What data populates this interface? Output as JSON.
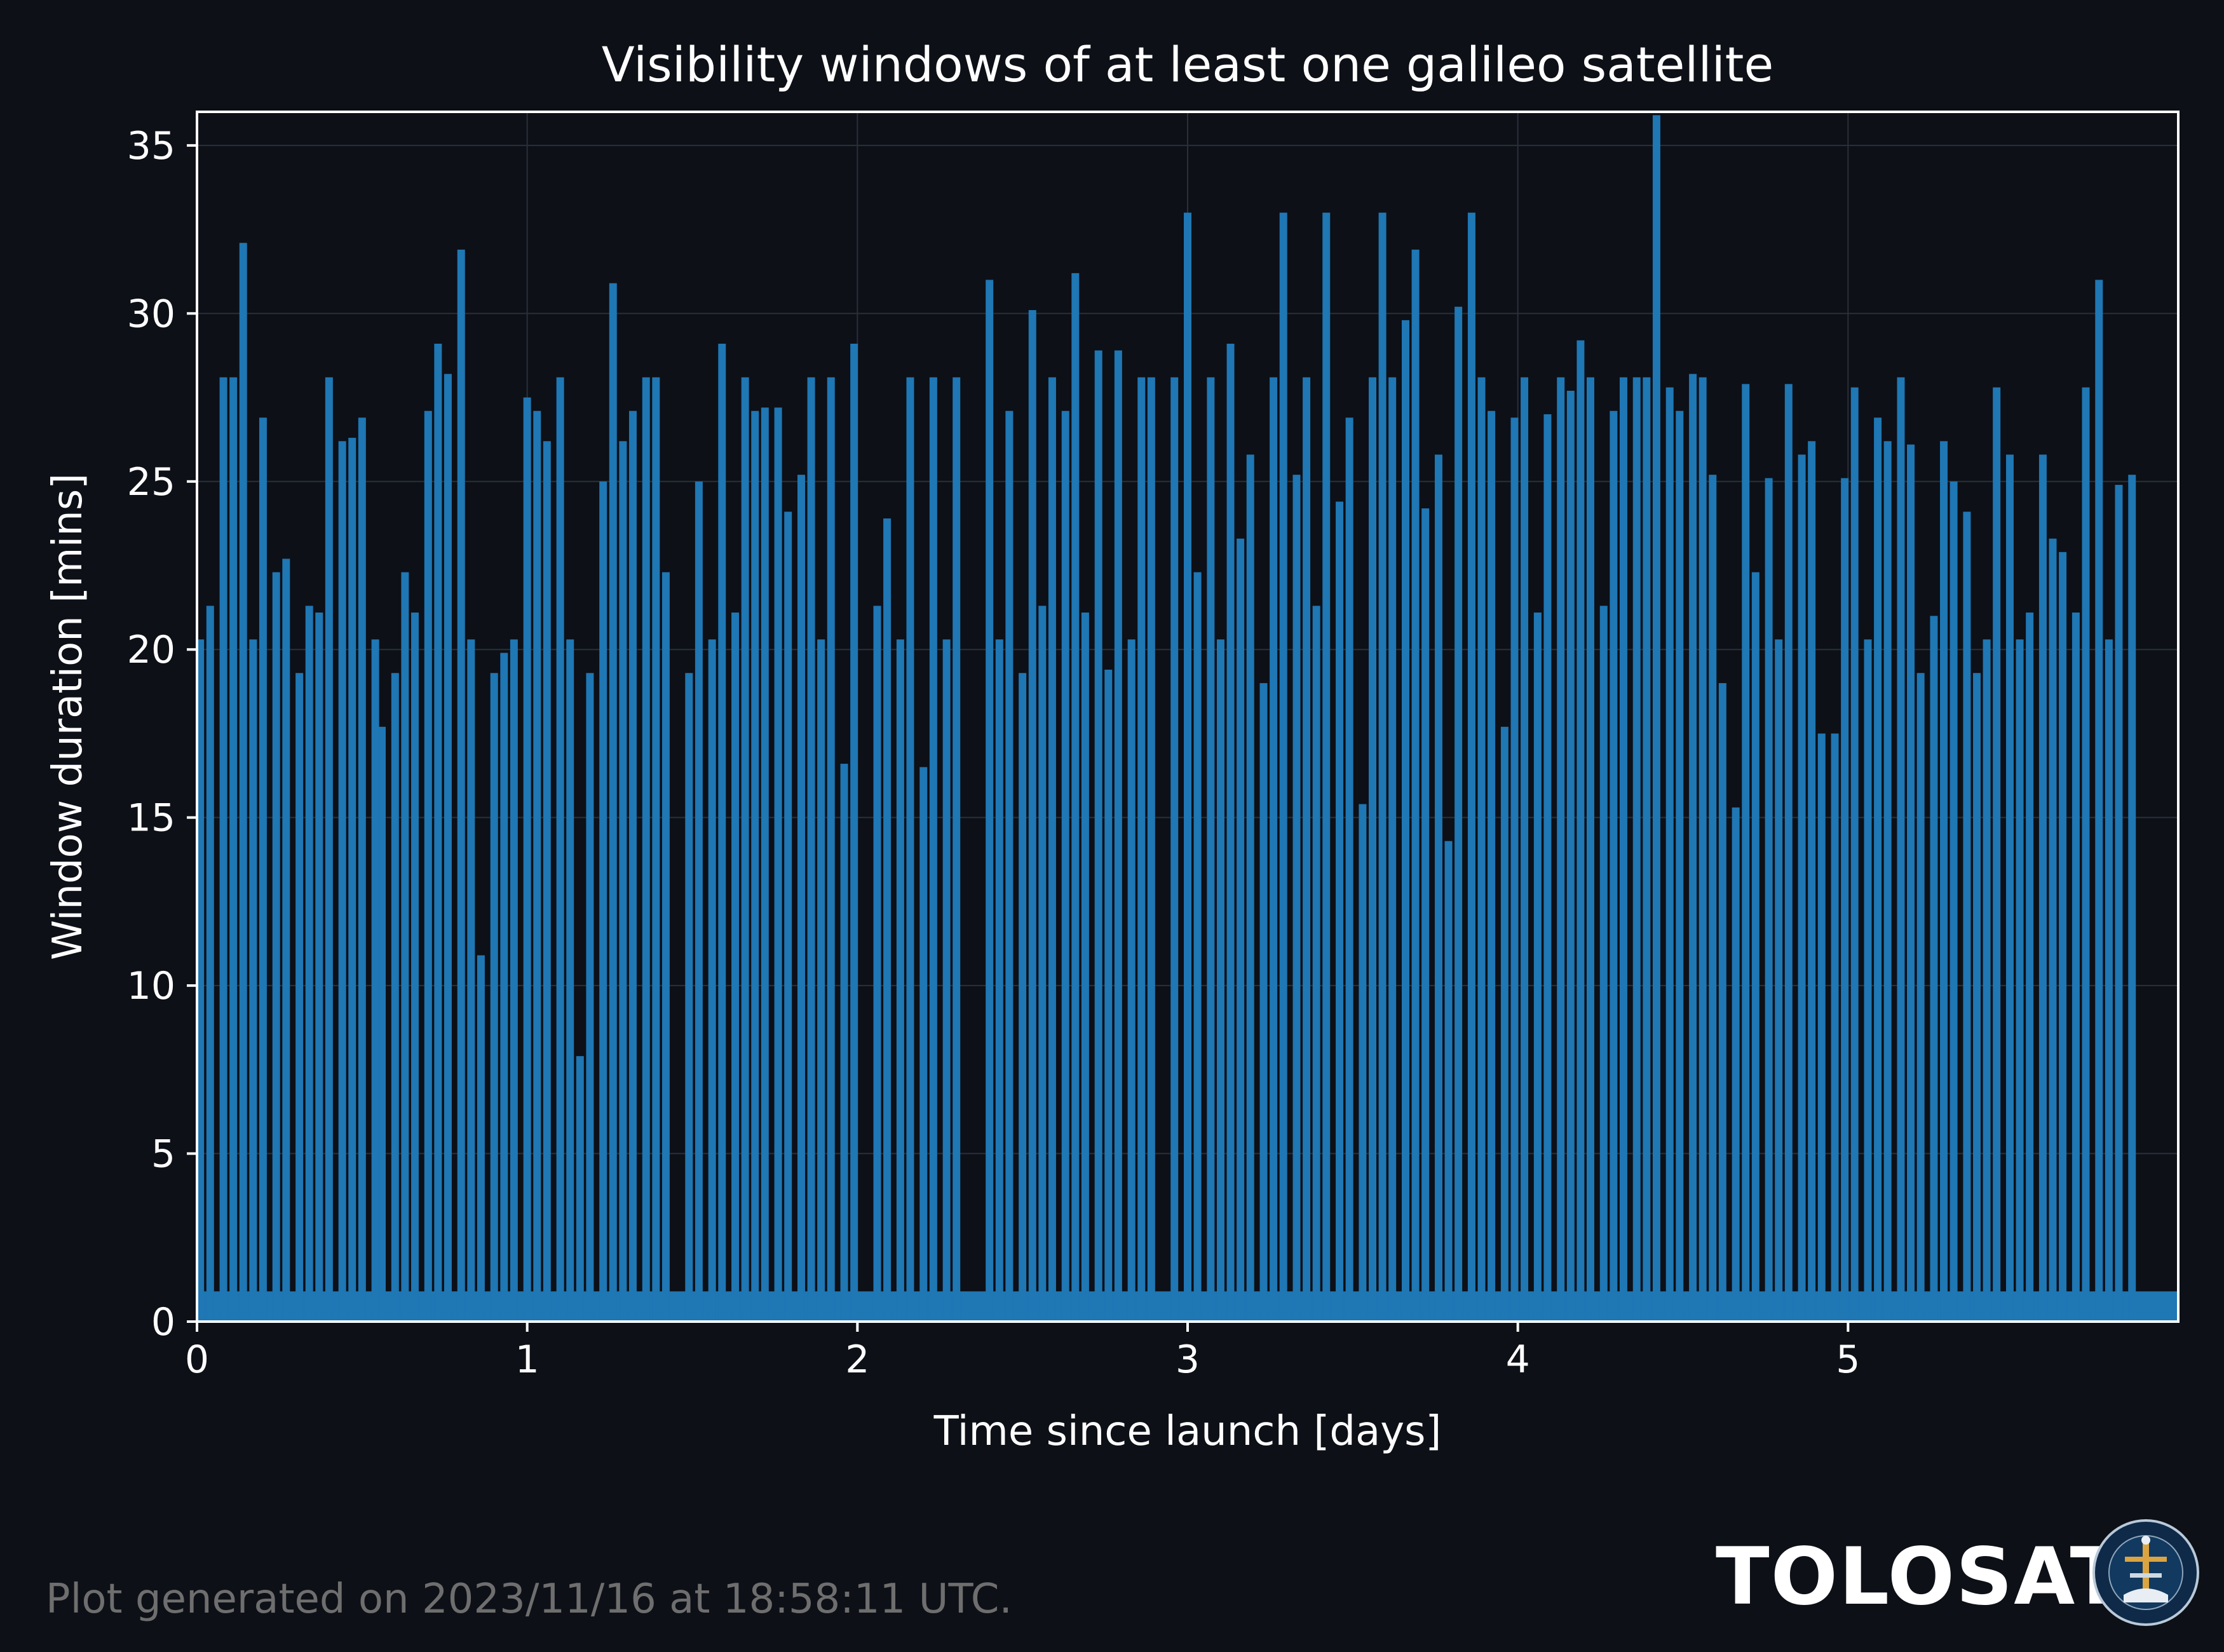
{
  "chart_data": {
    "type": "bar",
    "title": "Visibility windows of at least one galileo satellite",
    "xlabel": "Time since launch [days]",
    "ylabel": "Window duration [mins]",
    "xlim": [
      0,
      6.0
    ],
    "ylim": [
      0,
      36
    ],
    "xticks": [
      0,
      1,
      2,
      3,
      4,
      5
    ],
    "yticks": [
      0,
      5,
      10,
      15,
      20,
      25,
      30,
      35
    ],
    "grid": true,
    "bar_color": "#1f77b4",
    "series": [
      {
        "values": [
          [
            0.01,
            20.3
          ],
          [
            0.04,
            21.3
          ],
          [
            0.08,
            28.1
          ],
          [
            0.11,
            28.1
          ],
          [
            0.14,
            32.1
          ],
          [
            0.17,
            20.3
          ],
          [
            0.2,
            26.9
          ],
          [
            0.24,
            22.3
          ],
          [
            0.27,
            22.7
          ],
          [
            0.31,
            19.3
          ],
          [
            0.34,
            21.3
          ],
          [
            0.37,
            21.1
          ],
          [
            0.4,
            28.1
          ],
          [
            0.44,
            26.2
          ],
          [
            0.47,
            26.3
          ],
          [
            0.5,
            26.9
          ],
          [
            0.54,
            20.3
          ],
          [
            0.56,
            17.7
          ],
          [
            0.6,
            19.3
          ],
          [
            0.63,
            22.3
          ],
          [
            0.66,
            21.1
          ],
          [
            0.7,
            27.1
          ],
          [
            0.73,
            29.1
          ],
          [
            0.76,
            28.2
          ],
          [
            0.8,
            31.9
          ],
          [
            0.83,
            20.3
          ],
          [
            0.86,
            10.9
          ],
          [
            0.9,
            19.3
          ],
          [
            0.93,
            19.9
          ],
          [
            0.96,
            20.3
          ],
          [
            1.0,
            27.5
          ],
          [
            1.03,
            27.1
          ],
          [
            1.06,
            26.2
          ],
          [
            1.1,
            28.1
          ],
          [
            1.13,
            20.3
          ],
          [
            1.16,
            7.9
          ],
          [
            1.19,
            19.3
          ],
          [
            1.23,
            25.0
          ],
          [
            1.26,
            30.9
          ],
          [
            1.29,
            26.2
          ],
          [
            1.32,
            27.1
          ],
          [
            1.36,
            28.1
          ],
          [
            1.39,
            28.1
          ],
          [
            1.42,
            22.3
          ],
          [
            1.49,
            19.3
          ],
          [
            1.52,
            25.0
          ],
          [
            1.56,
            20.3
          ],
          [
            1.59,
            29.1
          ],
          [
            1.63,
            21.1
          ],
          [
            1.66,
            28.1
          ],
          [
            1.69,
            27.1
          ],
          [
            1.72,
            27.2
          ],
          [
            1.76,
            27.2
          ],
          [
            1.79,
            24.1
          ],
          [
            1.83,
            25.2
          ],
          [
            1.86,
            28.1
          ],
          [
            1.89,
            20.3
          ],
          [
            1.92,
            28.1
          ],
          [
            1.96,
            16.6
          ],
          [
            1.99,
            29.1
          ],
          [
            2.06,
            21.3
          ],
          [
            2.09,
            23.9
          ],
          [
            2.13,
            20.3
          ],
          [
            2.16,
            28.1
          ],
          [
            2.2,
            16.5
          ],
          [
            2.23,
            28.1
          ],
          [
            2.27,
            20.3
          ],
          [
            2.3,
            28.1
          ],
          [
            2.4,
            31.0
          ],
          [
            2.43,
            20.3
          ],
          [
            2.46,
            27.1
          ],
          [
            2.5,
            19.3
          ],
          [
            2.53,
            30.1
          ],
          [
            2.56,
            21.3
          ],
          [
            2.59,
            28.1
          ],
          [
            2.63,
            27.1
          ],
          [
            2.66,
            31.2
          ],
          [
            2.69,
            21.1
          ],
          [
            2.73,
            28.9
          ],
          [
            2.76,
            19.4
          ],
          [
            2.79,
            28.9
          ],
          [
            2.83,
            20.3
          ],
          [
            2.86,
            28.1
          ],
          [
            2.89,
            28.1
          ],
          [
            2.96,
            28.1
          ],
          [
            3.0,
            33.0
          ],
          [
            3.03,
            22.3
          ],
          [
            3.07,
            28.1
          ],
          [
            3.1,
            20.3
          ],
          [
            3.13,
            29.1
          ],
          [
            3.16,
            23.3
          ],
          [
            3.19,
            25.8
          ],
          [
            3.23,
            19.0
          ],
          [
            3.26,
            28.1
          ],
          [
            3.29,
            33.0
          ],
          [
            3.33,
            25.2
          ],
          [
            3.36,
            28.1
          ],
          [
            3.39,
            21.3
          ],
          [
            3.42,
            33.0
          ],
          [
            3.46,
            24.4
          ],
          [
            3.49,
            26.9
          ],
          [
            3.53,
            15.4
          ],
          [
            3.56,
            28.1
          ],
          [
            3.59,
            33.0
          ],
          [
            3.62,
            28.1
          ],
          [
            3.66,
            29.8
          ],
          [
            3.69,
            31.9
          ],
          [
            3.72,
            24.2
          ],
          [
            3.76,
            25.8
          ],
          [
            3.79,
            14.3
          ],
          [
            3.82,
            30.2
          ],
          [
            3.86,
            33.0
          ],
          [
            3.89,
            28.1
          ],
          [
            3.92,
            27.1
          ],
          [
            3.96,
            17.7
          ],
          [
            3.99,
            26.9
          ],
          [
            4.02,
            28.1
          ],
          [
            4.06,
            21.1
          ],
          [
            4.09,
            27.0
          ],
          [
            4.13,
            28.1
          ],
          [
            4.16,
            27.7
          ],
          [
            4.19,
            29.2
          ],
          [
            4.22,
            28.1
          ],
          [
            4.26,
            21.3
          ],
          [
            4.29,
            27.1
          ],
          [
            4.32,
            28.1
          ],
          [
            4.36,
            28.1
          ],
          [
            4.39,
            28.1
          ],
          [
            4.42,
            35.9
          ],
          [
            4.46,
            27.8
          ],
          [
            4.49,
            27.1
          ],
          [
            4.53,
            28.2
          ],
          [
            4.56,
            28.1
          ],
          [
            4.59,
            25.2
          ],
          [
            4.62,
            19.0
          ],
          [
            4.66,
            15.3
          ],
          [
            4.69,
            27.9
          ],
          [
            4.72,
            22.3
          ],
          [
            4.76,
            25.1
          ],
          [
            4.79,
            20.3
          ],
          [
            4.82,
            27.9
          ],
          [
            4.86,
            25.8
          ],
          [
            4.89,
            26.2
          ],
          [
            4.92,
            17.5
          ],
          [
            4.96,
            17.5
          ],
          [
            4.99,
            25.1
          ],
          [
            5.02,
            27.8
          ],
          [
            5.06,
            20.3
          ],
          [
            5.09,
            26.9
          ],
          [
            5.12,
            26.2
          ],
          [
            5.16,
            28.1
          ],
          [
            5.19,
            26.1
          ],
          [
            5.22,
            19.3
          ],
          [
            5.26,
            21.0
          ],
          [
            5.29,
            26.2
          ],
          [
            5.32,
            25.0
          ],
          [
            5.36,
            24.1
          ],
          [
            5.39,
            19.3
          ],
          [
            5.42,
            20.3
          ],
          [
            5.45,
            27.8
          ],
          [
            5.49,
            25.8
          ],
          [
            5.52,
            20.3
          ],
          [
            5.55,
            21.1
          ],
          [
            5.59,
            25.8
          ],
          [
            5.62,
            23.3
          ],
          [
            5.65,
            22.9
          ],
          [
            5.69,
            21.1
          ],
          [
            5.72,
            27.8
          ],
          [
            5.76,
            31.0
          ],
          [
            5.79,
            20.3
          ],
          [
            5.82,
            24.9
          ],
          [
            5.86,
            25.2
          ]
        ]
      }
    ]
  },
  "footer": {
    "generated_note": "Plot generated on 2023/11/16 at 18:58:11 UTC.",
    "brand": "TOLOSAT",
    "seal_text": "ASTRE·CC SUPAERO TOLOSAT"
  }
}
